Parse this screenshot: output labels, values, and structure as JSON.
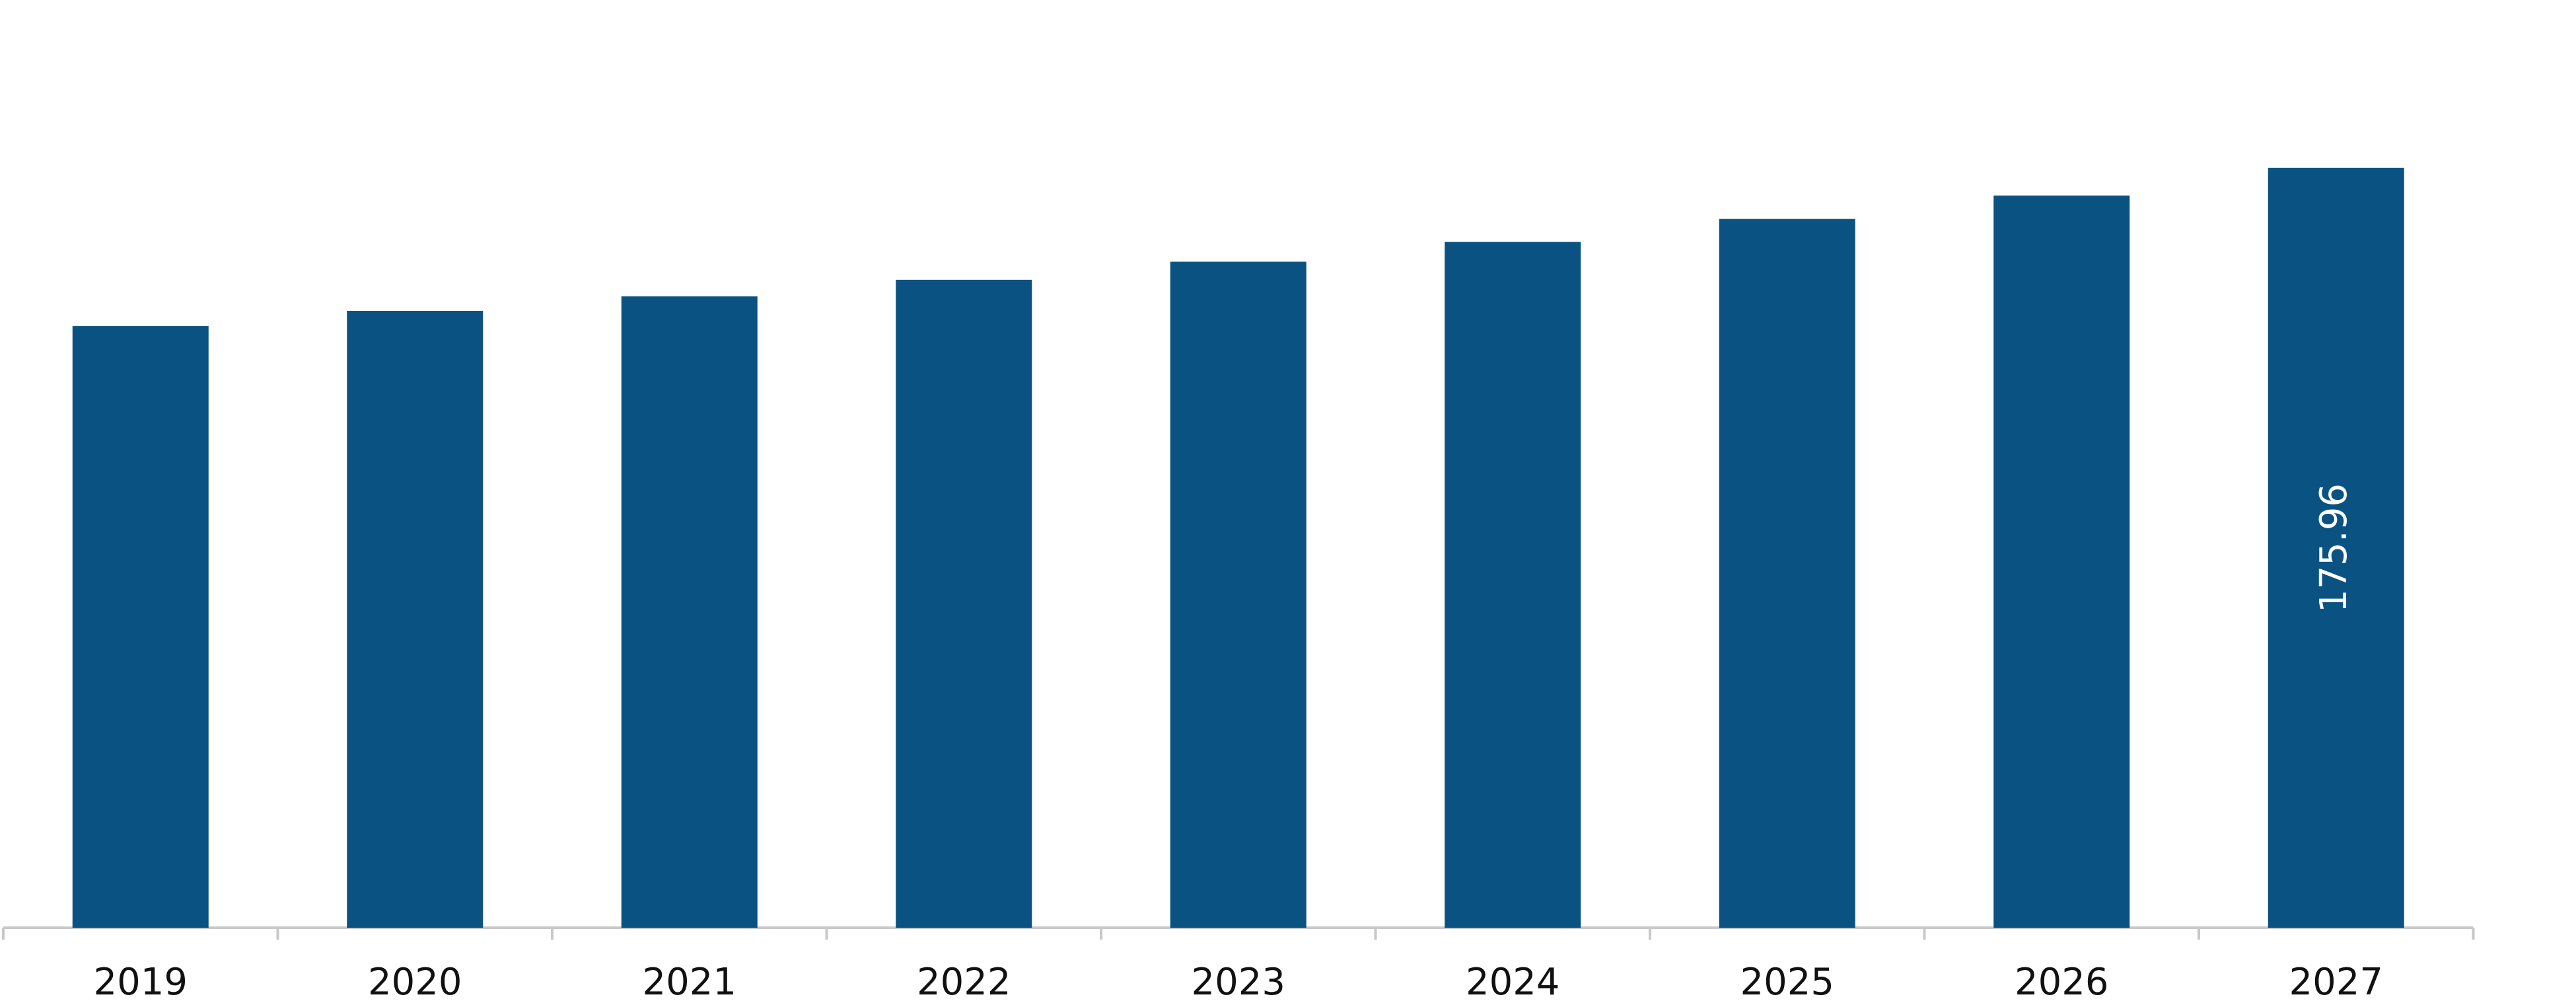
{
  "chart_data": {
    "type": "bar",
    "categories": [
      "2019",
      "2020",
      "2021",
      "2022",
      "2023",
      "2024",
      "2025",
      "2026",
      "2027"
    ],
    "values": [
      139.3,
      142.8,
      146.2,
      150.0,
      154.2,
      158.8,
      164.1,
      169.5,
      175.96
    ],
    "color": "#0a5282"
  }
}
